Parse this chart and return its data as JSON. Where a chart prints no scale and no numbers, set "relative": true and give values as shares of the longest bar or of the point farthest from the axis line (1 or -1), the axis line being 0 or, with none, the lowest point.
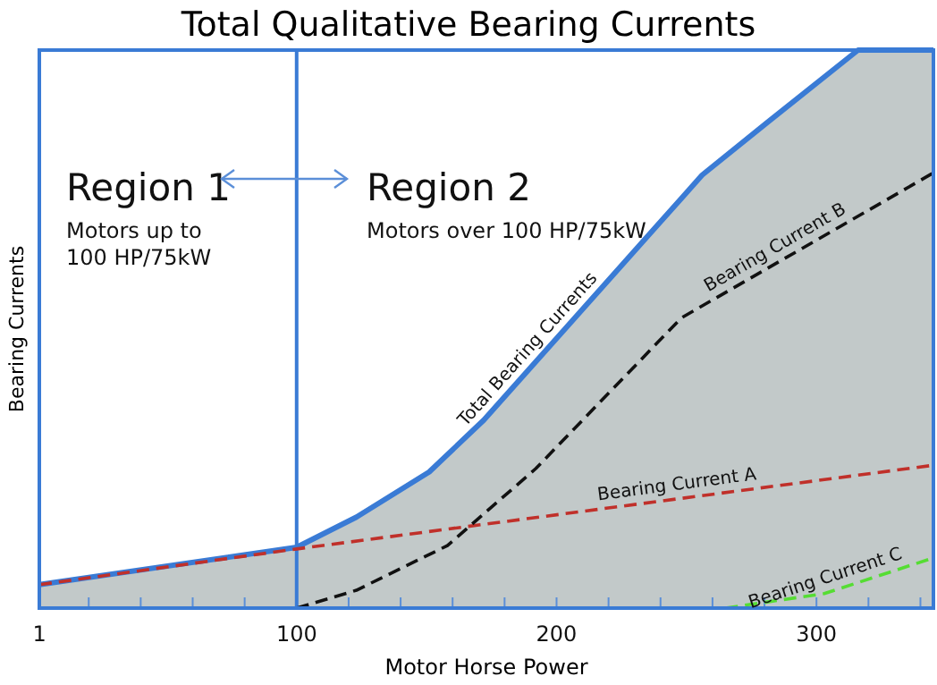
{
  "chart_data": {
    "type": "line",
    "title": "Total Qualitative Bearing Currents",
    "xlabel": "Motor Horse Power",
    "ylabel": "Bearing Currents",
    "relative": true,
    "grid": false,
    "legend": false,
    "xlim": [
      1,
      345
    ],
    "xticks": [
      1,
      {
        "value": 20,
        "label": null
      },
      {
        "value": 40,
        "label": null
      },
      {
        "value": 60,
        "label": null
      },
      {
        "value": 80,
        "label": null
      },
      100,
      {
        "value": 120,
        "label": null
      },
      {
        "value": 140,
        "label": null
      },
      {
        "value": 160,
        "label": null
      },
      {
        "value": 180,
        "label": null
      },
      200,
      {
        "value": 220,
        "label": null
      },
      {
        "value": 240,
        "label": null
      },
      {
        "value": 260,
        "label": null
      },
      {
        "value": 280,
        "label": null
      },
      300,
      {
        "value": 320,
        "label": null
      },
      {
        "value": 340,
        "label": null
      }
    ],
    "series": [
      {
        "name": "Total Bearing Currents",
        "type": "area",
        "color": "#3a7bd5",
        "line_style": "solid",
        "x": [
          1,
          100,
          123,
          151,
          172,
          256,
          281,
          316,
          345
        ],
        "values": [
          0.042,
          0.109,
          0.163,
          0.244,
          0.337,
          0.776,
          0.87,
          1,
          1
        ]
      },
      {
        "name": "Bearing Current A",
        "color": "#c0302a",
        "line_style": "dashed",
        "x": [
          1,
          100,
          345
        ],
        "values": [
          0.042,
          0.106,
          0.256
        ]
      },
      {
        "name": "Bearing Current B",
        "color": "#111111",
        "line_style": "dashed",
        "x": [
          100,
          123,
          158,
          192,
          248,
          345
        ],
        "values": [
          0,
          0.032,
          0.112,
          0.25,
          0.52,
          0.78
        ]
      },
      {
        "name": "Bearing Current C",
        "color": "#55dd33",
        "line_style": "dashed",
        "x": [
          265,
          303,
          345
        ],
        "values": [
          0,
          0.026,
          0.09
        ]
      }
    ],
    "ref_lines": [
      {
        "axis": "x",
        "value": 100,
        "color": "#3a7bd5",
        "line_style": "solid"
      }
    ],
    "annotations": [
      "Region 1",
      "Motors up to\n100 HP/75kW",
      "Region 2",
      "Motors over 100 HP/75kW"
    ]
  }
}
